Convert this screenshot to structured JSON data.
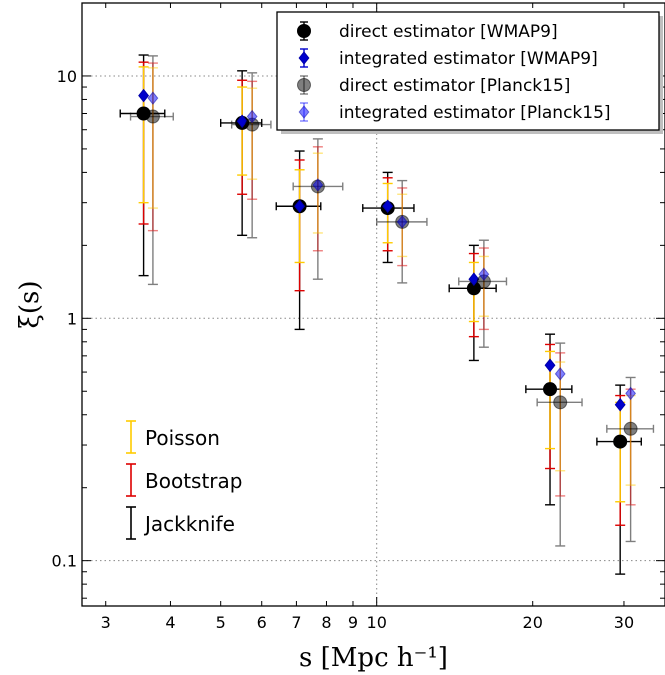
{
  "chart_data": {
    "type": "scatter",
    "xlabel": "s [Mpc h⁻¹]",
    "ylabel": "ξ(s)",
    "xscale": "log",
    "yscale": "log",
    "xlim": [
      2.7,
      36
    ],
    "ylim": [
      0.065,
      20
    ],
    "xticks": [
      3,
      4,
      5,
      6,
      7,
      8,
      9,
      10,
      20,
      30
    ],
    "xtick_labels": [
      "3",
      "4",
      "5",
      "6",
      "7",
      "8",
      "9",
      "10",
      "20",
      "30"
    ],
    "yticks": [
      0.1,
      1,
      10
    ],
    "ytick_labels": [
      "0.1",
      "1",
      "10"
    ],
    "grid": "dotted lines at 10 on x and at 0.1, 1, 10 on y",
    "legend_position": "top-right",
    "series": [
      {
        "name": "direct estimator [WMAP9]",
        "marker": "circle",
        "color": "#000000",
        "alpha": 1.0,
        "points": [
          {
            "x": 3.55,
            "y": 7.0,
            "xerr": [
              3.2,
              3.9
            ],
            "err_jackknife": [
              1.5,
              12.2
            ],
            "err_bootstrap": [
              2.45,
              11.4
            ],
            "err_poisson": [
              3.0,
              10.9
            ]
          },
          {
            "x": 5.5,
            "y": 6.4,
            "xerr": [
              5.0,
              6.0
            ],
            "err_jackknife": [
              2.2,
              10.5
            ],
            "err_bootstrap": [
              3.25,
              9.6
            ],
            "err_poisson": [
              3.9,
              9.0
            ]
          },
          {
            "x": 7.1,
            "y": 2.9,
            "xerr": [
              6.4,
              7.8
            ],
            "err_jackknife": [
              0.9,
              4.9
            ],
            "err_bootstrap": [
              1.3,
              4.5
            ],
            "err_poisson": [
              1.7,
              4.1
            ]
          },
          {
            "x": 10.5,
            "y": 2.85,
            "xerr": [
              9.4,
              11.8
            ],
            "err_jackknife": [
              1.7,
              4.0
            ],
            "err_bootstrap": [
              1.9,
              3.8
            ],
            "err_poisson": [
              2.05,
              3.6
            ]
          },
          {
            "x": 15.4,
            "y": 1.33,
            "xerr": [
              13.8,
              17.0
            ],
            "err_jackknife": [
              0.67,
              2.0
            ],
            "err_bootstrap": [
              0.84,
              1.85
            ],
            "err_poisson": [
              0.97,
              1.7
            ]
          },
          {
            "x": 21.6,
            "y": 0.51,
            "xerr": [
              19.4,
              23.8
            ],
            "err_jackknife": [
              0.17,
              0.86
            ],
            "err_bootstrap": [
              0.24,
              0.78
            ],
            "err_poisson": [
              0.29,
              0.73
            ]
          },
          {
            "x": 29.5,
            "y": 0.31,
            "xerr": [
              26.6,
              32.4
            ],
            "err_jackknife": [
              0.088,
              0.53
            ],
            "err_bootstrap": [
              0.14,
              0.48
            ],
            "err_poisson": [
              0.175,
              0.45
            ]
          }
        ]
      },
      {
        "name": "integrated estimator [WMAP9]",
        "marker": "diamond",
        "color": "#0000cc",
        "alpha": 1.0,
        "points": [
          {
            "x": 3.55,
            "y": 8.3
          },
          {
            "x": 5.5,
            "y": 6.5
          },
          {
            "x": 7.1,
            "y": 2.9
          },
          {
            "x": 10.5,
            "y": 2.9
          },
          {
            "x": 15.4,
            "y": 1.45
          },
          {
            "x": 21.6,
            "y": 0.64
          },
          {
            "x": 29.5,
            "y": 0.44
          }
        ]
      },
      {
        "name": "direct estimator [Planck15]",
        "marker": "circle",
        "color": "#000000",
        "alpha": 0.5,
        "points": [
          {
            "x": 3.7,
            "y": 6.8,
            "xerr": [
              3.35,
              4.05
            ],
            "err_jackknife": [
              1.38,
              12.1
            ],
            "err_bootstrap": [
              2.3,
              11.3
            ],
            "err_poisson": [
              2.85,
              10.8
            ]
          },
          {
            "x": 5.75,
            "y": 6.3,
            "xerr": [
              5.25,
              6.25
            ],
            "err_jackknife": [
              2.15,
              10.3
            ],
            "err_bootstrap": [
              3.1,
              9.5
            ],
            "err_poisson": [
              3.75,
              8.9
            ]
          },
          {
            "x": 7.7,
            "y": 3.5,
            "xerr": [
              6.9,
              8.6
            ],
            "err_jackknife": [
              1.45,
              5.5
            ],
            "err_bootstrap": [
              1.9,
              5.1
            ],
            "err_poisson": [
              2.25,
              4.8
            ]
          },
          {
            "x": 11.2,
            "y": 2.5,
            "xerr": [
              10.0,
              12.5
            ],
            "err_jackknife": [
              1.4,
              3.7
            ],
            "err_bootstrap": [
              1.65,
              3.45
            ],
            "err_poisson": [
              1.8,
              3.25
            ]
          },
          {
            "x": 16.1,
            "y": 1.42,
            "xerr": [
              14.4,
              17.8
            ],
            "err_jackknife": [
              0.76,
              2.1
            ],
            "err_bootstrap": [
              0.9,
              1.95
            ],
            "err_poisson": [
              1.02,
              1.8
            ]
          },
          {
            "x": 22.6,
            "y": 0.45,
            "xerr": [
              20.4,
              24.9
            ],
            "err_jackknife": [
              0.115,
              0.79
            ],
            "err_bootstrap": [
              0.185,
              0.72
            ],
            "err_poisson": [
              0.235,
              0.66
            ]
          },
          {
            "x": 30.9,
            "y": 0.35,
            "xerr": [
              27.8,
              34.2
            ],
            "err_jackknife": [
              0.12,
              0.57
            ],
            "err_bootstrap": [
              0.17,
              0.51
            ],
            "err_poisson": [
              0.205,
              0.48
            ]
          }
        ]
      },
      {
        "name": "integrated estimator [Planck15]",
        "marker": "diamond",
        "color": "#0000ff",
        "alpha": 0.5,
        "points": [
          {
            "x": 3.7,
            "y": 8.1
          },
          {
            "x": 5.75,
            "y": 6.8
          },
          {
            "x": 7.7,
            "y": 3.55
          },
          {
            "x": 11.2,
            "y": 2.5
          },
          {
            "x": 16.1,
            "y": 1.52
          },
          {
            "x": 22.6,
            "y": 0.59
          },
          {
            "x": 30.9,
            "y": 0.49
          }
        ]
      }
    ],
    "error_legend": [
      {
        "label": "Poisson",
        "color": "#ffcc00"
      },
      {
        "label": "Bootstrap",
        "color": "#dd0000"
      },
      {
        "label": "Jackknife",
        "color": "#000000"
      }
    ]
  }
}
